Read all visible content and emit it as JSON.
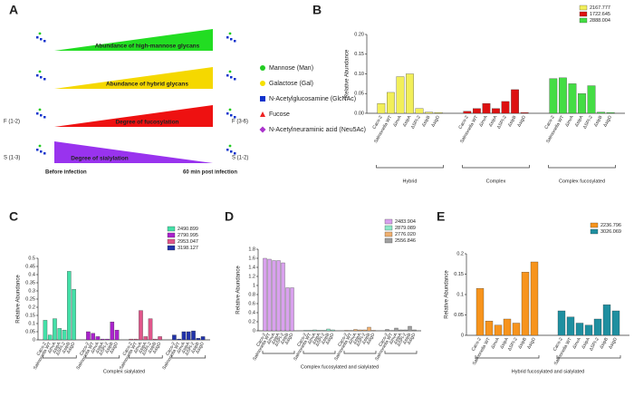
{
  "diagram": {
    "label": "A",
    "bands": [
      {
        "text": "Abundance of high-mannose glycans",
        "color": "#22dd22",
        "direction": "increasing"
      },
      {
        "text": "Abundance of hybrid glycans",
        "color": "#f5d800",
        "direction": "increasing"
      },
      {
        "text": "Degree of fucosylation",
        "color": "#ee1111",
        "direction": "increasing"
      },
      {
        "text": "Degree of sialylation",
        "color": "#9933ee",
        "direction": "decreasing"
      }
    ],
    "legend": [
      {
        "text": "Mannose (Man)",
        "color": "#22cc22",
        "shape": "circle"
      },
      {
        "text": "Galactose (Gal)",
        "color": "#f5e000",
        "shape": "circle"
      },
      {
        "text": "N-Acetylglucosamine (GlcNAc)",
        "color": "#1133cc",
        "shape": "square"
      },
      {
        "text": "Fucose",
        "color": "#ee2222",
        "shape": "triangle"
      },
      {
        "text": "N-Acetylneuraminic acid (Neu5Ac)",
        "color": "#aa33cc",
        "shape": "diamond"
      }
    ],
    "left_labels": [
      "F (1-2)",
      "S (1-3)"
    ],
    "right_labels": [
      "F (3-6)",
      "S (1-2)"
    ],
    "start_label": "Before infection",
    "end_label": "60 min post infection"
  },
  "chart_data": [
    {
      "type": "bar",
      "label": "B",
      "ylabel": "Relative Abundance",
      "categories": [
        "Caco-2",
        "Salmonella WT",
        "ΔinvA",
        "ΔsipA",
        "ΔSPI-2",
        "ΔsipB",
        "ΔsigD"
      ],
      "series": [
        {
          "name": "2167.777",
          "color": "#f2ef5a",
          "values": [
            0.025,
            0.053,
            0.093,
            0.1,
            0.012,
            0.003,
            0.002
          ]
        },
        {
          "name": "1722.645",
          "color": "#dd1111",
          "values": [
            0.005,
            0.012,
            0.025,
            0.012,
            0.03,
            0.06,
            0.002
          ]
        },
        {
          "name": "2888.004",
          "color": "#44dd44",
          "values": [
            0.088,
            0.09,
            0.075,
            0.05,
            0.07,
            0.003,
            0.002
          ]
        }
      ],
      "group_labels": [
        "Hybrid",
        "Complex",
        "Complex fucosylated"
      ],
      "ylim": [
        0,
        0.2
      ],
      "yticks": [
        {
          "value": 0,
          "label": "0.00"
        },
        {
          "value": 0.05,
          "label": "0.05"
        },
        {
          "value": 0.1,
          "label": "0.10"
        },
        {
          "value": 0.15,
          "label": "0.15"
        },
        {
          "value": 0.2,
          "label": "0.20"
        }
      ]
    },
    {
      "type": "bar",
      "label": "C",
      "ylabel": "Relative Abundance",
      "categories": [
        "Caco-2",
        "Salmonella WT",
        "ΔinvA",
        "ΔsipA",
        "ΔSPI-2",
        "ΔsipB",
        "ΔsigD"
      ],
      "series": [
        {
          "name": "2490.899",
          "color": "#44e0a8",
          "values": [
            0.12,
            0.03,
            0.13,
            0.07,
            0.06,
            0.42,
            0.31
          ]
        },
        {
          "name": "2790.995",
          "color": "#aa22cc",
          "values": [
            0.05,
            0.04,
            0.02,
            0.005,
            0.005,
            0.11,
            0.06
          ]
        },
        {
          "name": "2953.047",
          "color": "#e0558a",
          "values": [
            0.005,
            0.005,
            0.18,
            0.02,
            0.13,
            0.005,
            0.02
          ]
        },
        {
          "name": "3198.127",
          "color": "#2233aa",
          "values": [
            0.03,
            0.005,
            0.05,
            0.05,
            0.055,
            0.01,
            0.02
          ]
        }
      ],
      "group_labels": [
        "Complex sialylated"
      ],
      "ylim": [
        0,
        0.5
      ],
      "yticks": [
        0,
        0.05,
        0.1,
        0.15,
        0.2,
        0.25,
        0.3,
        0.35,
        0.4,
        0.45,
        0.5
      ]
    },
    {
      "type": "bar",
      "label": "D",
      "ylabel": "Relative Abundance",
      "categories": [
        "Caco-2",
        "Salmonella WT",
        "ΔinvA",
        "ΔsipA",
        "ΔSPI-2",
        "ΔsipB",
        "ΔsigD"
      ],
      "series": [
        {
          "name": "2483.904",
          "color": "#d9a0ee",
          "values": [
            1.6,
            1.58,
            1.55,
            1.55,
            1.5,
            0.95,
            0.95
          ]
        },
        {
          "name": "2879.089",
          "color": "#8ee8c8",
          "values": [
            0.01,
            0.01,
            0.02,
            0.01,
            0.01,
            0.04,
            0.02
          ]
        },
        {
          "name": "2776.020",
          "color": "#f0b070",
          "values": [
            0.01,
            0.005,
            0.03,
            0.02,
            0.02,
            0.08,
            0.01
          ]
        },
        {
          "name": "2556.846",
          "color": "#a0a0a0",
          "values": [
            0.03,
            0.005,
            0.06,
            0.02,
            0.02,
            0.1,
            0.02
          ]
        }
      ],
      "group_labels": [
        "Complex fucosylated and sialylated"
      ],
      "ylim": [
        0,
        1.8
      ],
      "yticks": [
        0,
        0.2,
        0.4,
        0.6,
        0.8,
        1,
        1.2,
        1.4,
        1.6,
        1.8
      ]
    },
    {
      "type": "bar",
      "label": "E",
      "ylabel": "Relative Abundance",
      "categories": [
        "Caco-2",
        "Salmonella WT",
        "ΔinvA",
        "ΔsipA",
        "ΔSPI-2",
        "ΔsipB",
        "ΔsigD"
      ],
      "series": [
        {
          "name": "2236.796",
          "color": "#f7941d",
          "values": [
            0.115,
            0.035,
            0.025,
            0.04,
            0.03,
            0.155,
            0.18
          ]
        },
        {
          "name": "3026.069",
          "color": "#1f8fa0",
          "values": [
            0.06,
            0.045,
            0.03,
            0.025,
            0.04,
            0.075,
            0.06
          ]
        }
      ],
      "group_labels": [
        "Hybrid fucosylated and sialylated"
      ],
      "ylim": [
        0,
        0.2
      ],
      "yticks": [
        0,
        0.05,
        0.1,
        0.15,
        0.2
      ]
    }
  ]
}
